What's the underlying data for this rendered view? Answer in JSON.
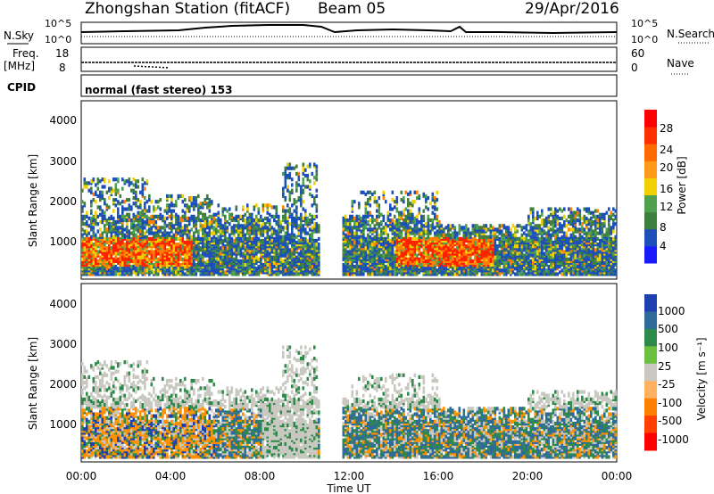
{
  "header": {
    "station": "Zhongshan Station (fitACF)",
    "beam": "Beam 05",
    "date": "29/Apr/2016"
  },
  "top_panel": {
    "left_label": "N.Sky",
    "right_label": "N.Search",
    "left_ticks": [
      "10^5",
      "10^0"
    ],
    "right_ticks": [
      "10^5",
      "10^0"
    ]
  },
  "freq_panel": {
    "left_label_line1": "Freq.",
    "left_label_line2": "[MHz]",
    "right_label": "Nave",
    "left_ticks": [
      "18",
      "8"
    ],
    "right_ticks": [
      "60",
      "0"
    ]
  },
  "cpid": {
    "label": "CPID",
    "value": "normal (fast stereo) 153"
  },
  "chart_data": [
    {
      "type": "heatmap",
      "title": "",
      "xlabel": "",
      "ylabel": "Slant Range [km]",
      "xlim": [
        "00:00",
        "24:00"
      ],
      "ylim": [
        180,
        4500
      ],
      "y_ticks": [
        "1000",
        "2000",
        "3000",
        "4000"
      ],
      "colorbar": {
        "label": "Power [dB]",
        "ticks": [
          "4",
          "8",
          "12",
          "16",
          "20",
          "24",
          "28"
        ],
        "colors": [
          "#1a1aff",
          "#1d4fb8",
          "#3f7f3f",
          "#4fa04f",
          "#f0d000",
          "#ff9a1a",
          "#ff6a00",
          "#ff3000",
          "#ff0000"
        ]
      },
      "bands": [
        {
          "x": [
            0,
            10.5
          ],
          "y": [
            300,
            1700
          ],
          "level": "mixed"
        },
        {
          "x": [
            12.1,
            24
          ],
          "y": [
            300,
            1700
          ],
          "level": "mixed"
        }
      ]
    },
    {
      "type": "heatmap",
      "title": "",
      "xlabel": "Time UT",
      "ylabel": "Slant Range [km]",
      "xlim": [
        "00:00",
        "24:00"
      ],
      "ylim": [
        180,
        4500
      ],
      "y_ticks": [
        "1000",
        "2000",
        "3000",
        "4000"
      ],
      "x_ticks": [
        "00:00",
        "04:00",
        "08:00",
        "12:00",
        "16:00",
        "20:00",
        "00:00"
      ],
      "colorbar": {
        "label": "Velocity [m s⁻¹]",
        "ticks": [
          "1000",
          "500",
          "100",
          "25",
          "-25",
          "-100",
          "-500",
          "-1000"
        ],
        "colors": [
          "#1d3fb0",
          "#2e6a9a",
          "#2e8a4a",
          "#6cc040",
          "#c8c8c0",
          "#ffb060",
          "#ff8000",
          "#ff4000",
          "#ff0000"
        ]
      }
    }
  ],
  "colors": {
    "ground": "#c8c8c0"
  }
}
